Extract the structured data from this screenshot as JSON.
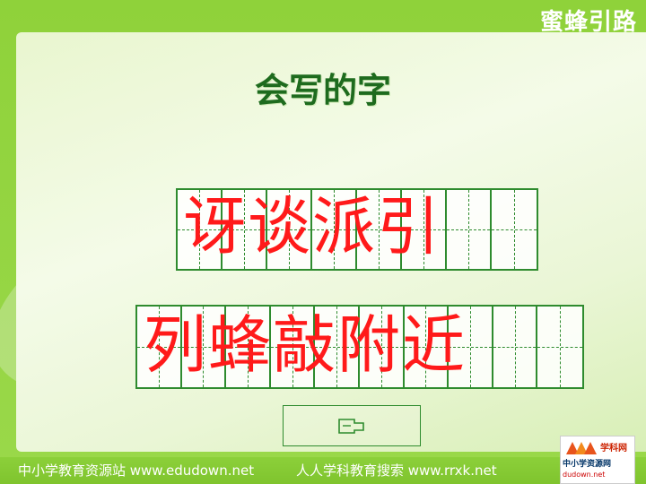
{
  "header": {
    "tag": "蜜蜂引路"
  },
  "slide": {
    "title": "会写的字",
    "row1": "讶谈派引",
    "row2": "列蜂敲附近"
  },
  "footer": {
    "left": "中小学教育资源站 www.edudown.net",
    "right": "人人学科教育搜索 www.rrxk.net"
  },
  "logo": {
    "top_label": "学科网",
    "bottom_label": "中小学资源网",
    "bottom_url": "dudown.net"
  },
  "colors": {
    "frame_green": "#8fd23a",
    "title_green": "#1e6b1e",
    "char_red": "#ff1a1a",
    "grid_green": "#2e8b2e"
  },
  "icons": {
    "nav": "return-arrow-icon"
  }
}
